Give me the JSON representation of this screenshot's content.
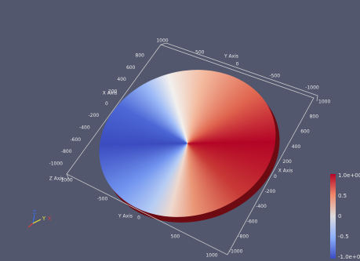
{
  "axis_box": {
    "top_edge": {
      "title": "Y Axis",
      "labels": [
        "1000",
        "500",
        "0",
        "-500",
        "-1000"
      ]
    },
    "left_edge": {
      "title": "X Axis",
      "labels": [
        "800",
        "600",
        "400",
        "200",
        "0",
        "-200",
        "-400",
        "-600",
        "-800",
        "-1000"
      ]
    },
    "bottom_edge": {
      "title": "Y Axis",
      "labels": [
        "-1000",
        "-500",
        "0",
        "500",
        "1000"
      ]
    },
    "right_edge": {
      "title": "X Axis",
      "labels": [
        "1000",
        "800",
        "600",
        "400",
        "200",
        "0",
        "-200",
        "-400",
        "-600",
        "-800",
        "-1000"
      ]
    },
    "z_title": "Z Axis"
  },
  "colorbar": {
    "labels": [
      "1.0e+00",
      "0.5",
      "0",
      "-0.5",
      "-1.0e+00"
    ]
  },
  "orientation_axes": {
    "labels": [
      "Z",
      "Y",
      "X"
    ]
  }
}
